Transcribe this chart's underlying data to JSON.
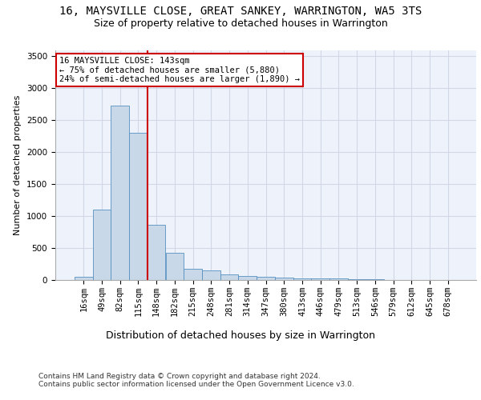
{
  "title1": "16, MAYSVILLE CLOSE, GREAT SANKEY, WARRINGTON, WA5 3TS",
  "title2": "Size of property relative to detached houses in Warrington",
  "xlabel": "Distribution of detached houses by size in Warrington",
  "ylabel": "Number of detached properties",
  "categories": [
    "16sqm",
    "49sqm",
    "82sqm",
    "115sqm",
    "148sqm",
    "182sqm",
    "215sqm",
    "248sqm",
    "281sqm",
    "314sqm",
    "347sqm",
    "380sqm",
    "413sqm",
    "446sqm",
    "479sqm",
    "513sqm",
    "546sqm",
    "579sqm",
    "612sqm",
    "645sqm",
    "678sqm"
  ],
  "values": [
    50,
    1100,
    2730,
    2300,
    870,
    430,
    170,
    155,
    90,
    65,
    50,
    35,
    30,
    20,
    20,
    10,
    10,
    5,
    5,
    5,
    5
  ],
  "bar_color": "#c8d8e8",
  "bar_edge_color": "#5590c0",
  "vline_x_index": 4,
  "vline_color": "#cc0000",
  "annotation_text": "16 MAYSVILLE CLOSE: 143sqm\n← 75% of detached houses are smaller (5,880)\n24% of semi-detached houses are larger (1,890) →",
  "annotation_box_color": "#ffffff",
  "annotation_box_edge_color": "#cc0000",
  "footnote1": "Contains HM Land Registry data © Crown copyright and database right 2024.",
  "footnote2": "Contains public sector information licensed under the Open Government Licence v3.0.",
  "ylim": [
    0,
    3600
  ],
  "yticks": [
    0,
    500,
    1000,
    1500,
    2000,
    2500,
    3000,
    3500
  ],
  "title1_fontsize": 10,
  "title2_fontsize": 9,
  "xlabel_fontsize": 9,
  "ylabel_fontsize": 8,
  "tick_fontsize": 7.5,
  "annotation_fontsize": 7.5,
  "footnote_fontsize": 6.5,
  "bg_color": "#eef2fa",
  "grid_color": "#d0d8e8"
}
